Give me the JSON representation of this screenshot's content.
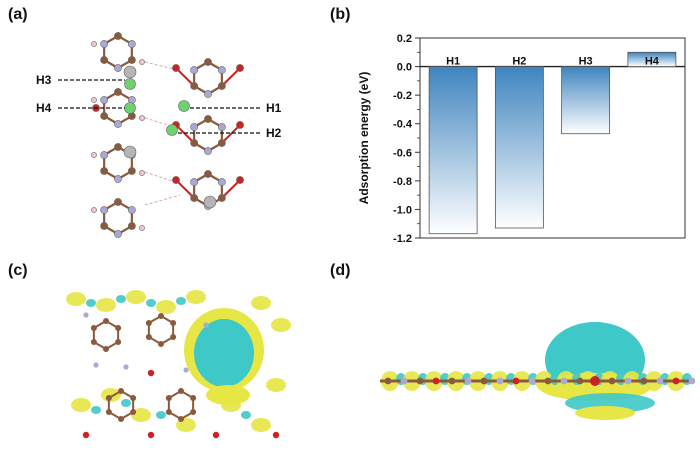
{
  "panels": {
    "a": {
      "label": "(a)",
      "sites": [
        "H3",
        "H4",
        "H1",
        "H2"
      ]
    },
    "b": {
      "label": "(b)"
    },
    "c": {
      "label": "(c)"
    },
    "d": {
      "label": "(d)"
    }
  },
  "colors": {
    "carbon": "#8b5a3c",
    "nitrogen": "#a9a9d6",
    "oxygen": "#cc2222",
    "hydrogen": "#f2c7c7",
    "metal": "#b5b5b5",
    "adsorbate": "#6ed36e",
    "charge_gain": "#e6e645",
    "charge_loss": "#3ec8c8",
    "bar_top": "#3f84bf",
    "bar_bottom": "#ffffff"
  },
  "chart_data": {
    "type": "bar",
    "categories": [
      "H1",
      "H2",
      "H3",
      "H4"
    ],
    "values": [
      -1.17,
      -1.13,
      -0.47,
      0.1
    ],
    "xlabel": "",
    "ylabel": "Adsorption energy (eV)",
    "ylim": [
      -1.2,
      0.2
    ],
    "yticks": [
      0.2,
      0.0,
      -0.2,
      -0.4,
      -0.6,
      -0.8,
      -1.0,
      -1.2
    ],
    "ytick_labels": [
      "0.2",
      "0.0",
      "-0.2",
      "-0.4",
      "-0.6",
      "-0.8",
      "-1.0",
      "-1.2"
    ],
    "grid": false,
    "legend": "none"
  }
}
